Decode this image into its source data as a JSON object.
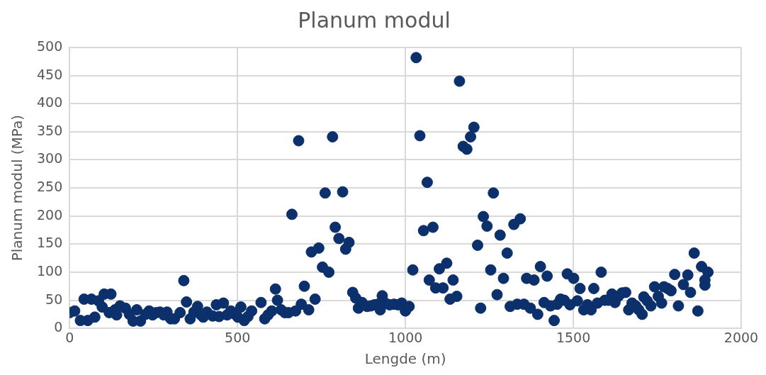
{
  "chart_data": {
    "type": "scatter",
    "title": "Planum modul",
    "xlabel": "Lengde (m)",
    "ylabel": "Planum modul (MPa)",
    "xlim": [
      0,
      2000
    ],
    "xticks": [
      0,
      500,
      1000,
      1500,
      2000
    ],
    "ylim": [
      0,
      500
    ],
    "yticks": [
      0,
      50,
      100,
      150,
      200,
      250,
      300,
      350,
      400,
      450,
      500
    ],
    "grid": true,
    "legend": false,
    "marker": "circle",
    "series": [
      {
        "color": "#0b306b",
        "x": [
          0,
          15,
          32,
          43,
          54,
          65,
          75,
          86,
          97,
          103,
          118,
          123,
          135,
          140,
          150,
          166,
          178,
          189,
          200,
          211,
          226,
          237,
          247,
          258,
          269,
          280,
          290,
          301,
          312,
          329,
          340,
          348,
          359,
          370,
          381,
          391,
          398,
          409,
          426,
          437,
          445,
          458,
          469,
          480,
          490,
          501,
          510,
          520,
          531,
          542,
          570,
          581,
          591,
          602,
          613,
          619,
          630,
          641,
          652,
          662,
          673,
          682,
          690,
          699,
          712,
          720,
          731,
          742,
          753,
          761,
          772,
          783,
          791,
          802,
          813,
          822,
          832,
          843,
          852,
          860,
          871,
          886,
          897,
          908,
          918,
          925,
          931,
          940,
          953,
          966,
          978,
          989,
          1000,
          1011,
          1022,
          1032,
          1043,
          1054,
          1065,
          1071,
          1082,
          1090,
          1101,
          1112,
          1123,
          1133,
          1142,
          1153,
          1161,
          1172,
          1183,
          1194,
          1204,
          1215,
          1224,
          1232,
          1243,
          1254,
          1262,
          1273,
          1282,
          1292,
          1303,
          1312,
          1323,
          1333,
          1342,
          1353,
          1361,
          1372,
          1383,
          1394,
          1402,
          1413,
          1422,
          1432,
          1443,
          1452,
          1462,
          1473,
          1482,
          1490,
          1501,
          1512,
          1520,
          1531,
          1542,
          1553,
          1561,
          1572,
          1583,
          1594,
          1604,
          1615,
          1624,
          1634,
          1645,
          1656,
          1665,
          1675,
          1686,
          1695,
          1705,
          1710,
          1720,
          1731,
          1742,
          1753,
          1763,
          1770,
          1781,
          1791,
          1802,
          1813,
          1828,
          1841,
          1849,
          1860,
          1871,
          1882,
          1892,
          1892,
          1901
        ],
        "values": [
          28,
          31,
          14,
          52,
          14,
          52,
          20,
          49,
          38,
          61,
          28,
          61,
          33,
          24,
          40,
          36,
          25,
          13,
          33,
          13,
          25,
          31,
          24,
          28,
          29,
          24,
          29,
          17,
          17,
          28,
          85,
          47,
          17,
          29,
          39,
          24,
          20,
          29,
          22,
          42,
          21,
          45,
          24,
          31,
          26,
          20,
          38,
          14,
          21,
          31,
          46,
          17,
          24,
          31,
          70,
          50,
          33,
          28,
          28,
          203,
          31,
          334,
          43,
          75,
          33,
          136,
          52,
          143,
          109,
          241,
          100,
          341,
          180,
          160,
          243,
          141,
          153,
          64,
          54,
          36,
          46,
          39,
          40,
          42,
          43,
          33,
          58,
          45,
          42,
          43,
          42,
          45,
          31,
          39,
          104,
          482,
          343,
          174,
          260,
          86,
          180,
          72,
          106,
          72,
          116,
          52,
          86,
          57,
          440,
          324,
          319,
          341,
          358,
          148,
          36,
          199,
          182,
          104,
          241,
          60,
          166,
          89,
          134,
          39,
          185,
          43,
          195,
          43,
          89,
          36,
          86,
          25,
          110,
          46,
          93,
          40,
          14,
          43,
          52,
          50,
          97,
          42,
          89,
          49,
          71,
          33,
          42,
          33,
          71,
          45,
          100,
          50,
          50,
          61,
          46,
          57,
          63,
          64,
          33,
          45,
          40,
          33,
          25,
          56,
          49,
          40,
          74,
          57,
          45,
          74,
          71,
          67,
          96,
          40,
          78,
          95,
          64,
          134,
          31,
          110,
          77,
          86,
          100
        ]
      }
    ]
  }
}
